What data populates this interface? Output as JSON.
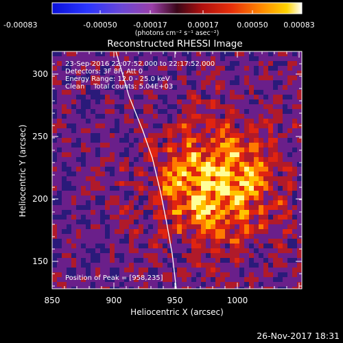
{
  "colorbar": {
    "ticks": [
      "-0.00083",
      "-0.00050",
      "-0.00017",
      "0.00017",
      "0.00050",
      "0.00083"
    ],
    "units": "(photons cm⁻² s⁻¹ asec⁻²)"
  },
  "title": "Reconstructed RHESSI Image",
  "info": {
    "time": "23-Sep-2016 22:07:52.000 to 22:17:52.000",
    "detectors": "Detectors: 3F 8F, Att 0",
    "energy": "Energy Range: 12.0 - 25.0 keV",
    "clean": "Clean    Total counts: 5.04E+03"
  },
  "peak_label": "Position of Peak = [958,235]",
  "axes": {
    "xlabel": "Heliocentric X (arcsec)",
    "ylabel": "Heliocentric Y (arcsec)",
    "xticks": [
      "850",
      "900",
      "950",
      "1000"
    ],
    "yticks": [
      "150",
      "200",
      "250",
      "300"
    ]
  },
  "timestamp": "26-Nov-2017 18:31",
  "colors": {
    "background": "#000000",
    "text": "#ffffff",
    "limb_line": "#ffffff"
  },
  "colormap": [
    "#000000",
    "#2a1a7a",
    "#6a1f8a",
    "#b01a2a",
    "#e02410",
    "#ff7a00",
    "#ffc400",
    "#ffff9a"
  ]
}
